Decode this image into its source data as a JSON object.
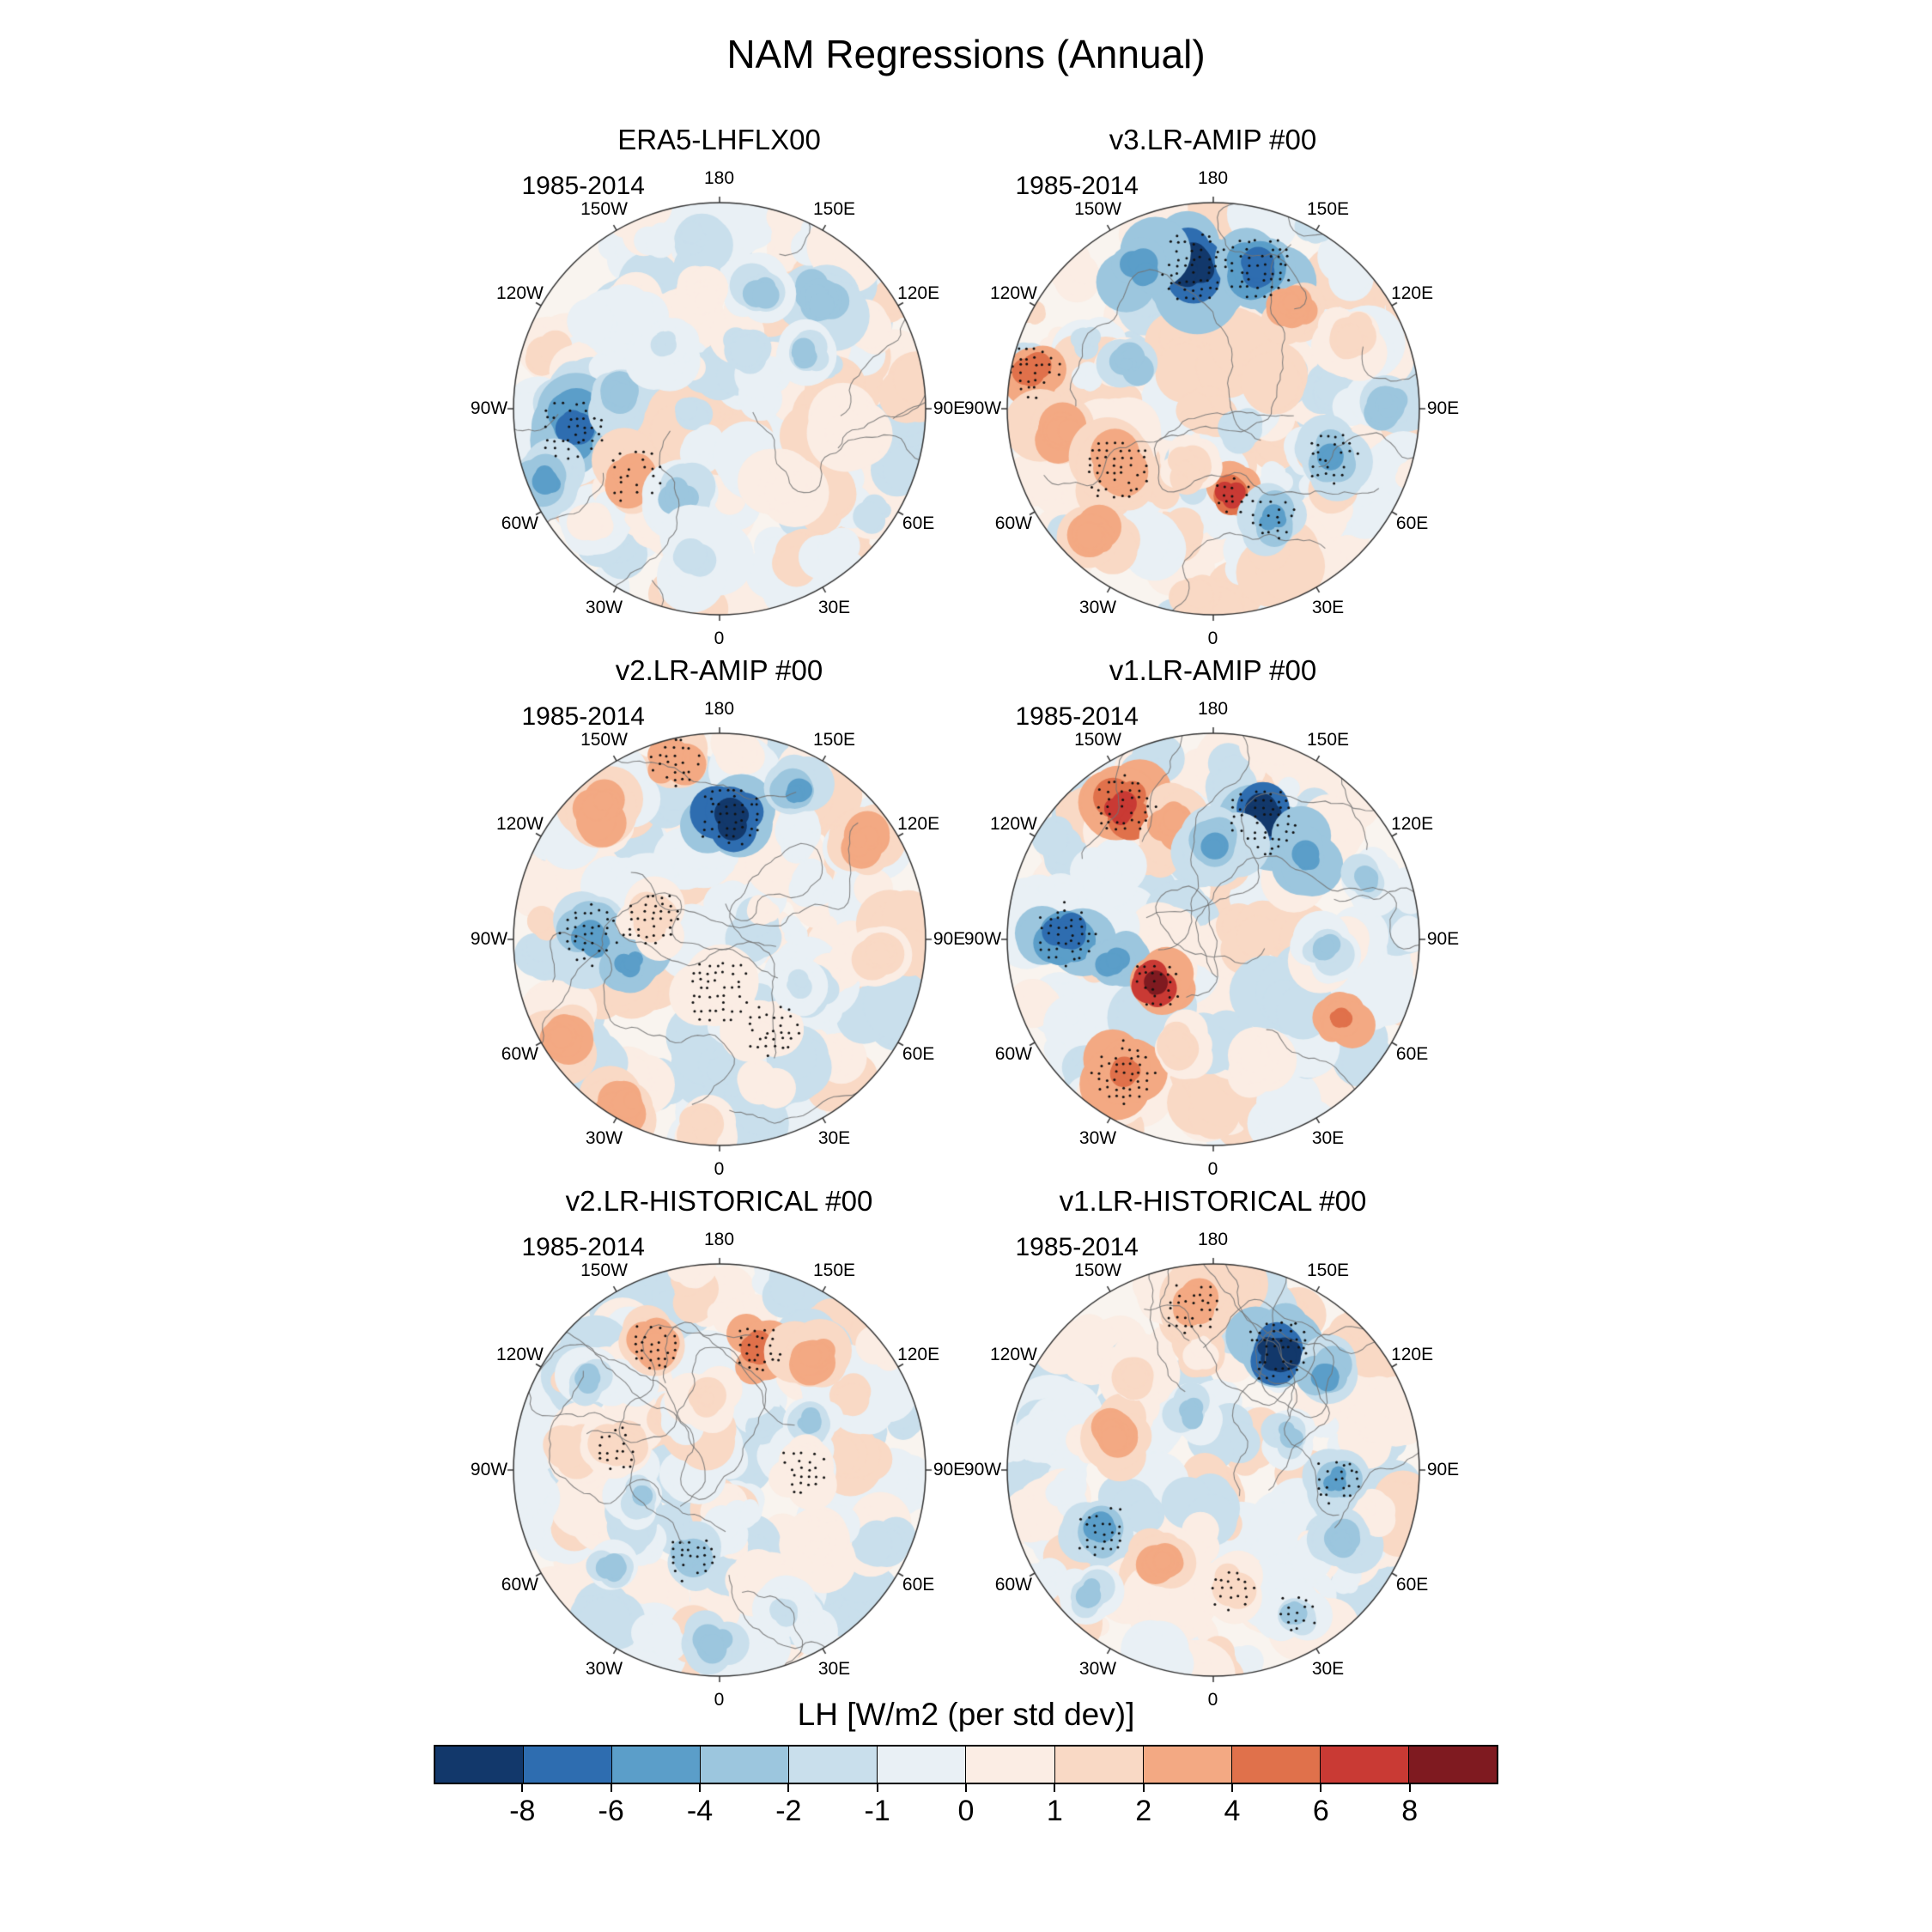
{
  "figure": {
    "title": "NAM Regressions (Annual)"
  },
  "colorbar": {
    "label": "LH [W/m2 (per std dev)]",
    "ticks": [
      "-8",
      "-6",
      "-4",
      "-2",
      "-1",
      "0",
      "1",
      "2",
      "4",
      "6",
      "8"
    ],
    "levels": [
      -8,
      -6,
      -4,
      -2,
      -1,
      0,
      1,
      2,
      4,
      6,
      8
    ],
    "colors": [
      "#12386b",
      "#2e6db0",
      "#5b9ec9",
      "#9cc6de",
      "#c9dfec",
      "#e9f0f5",
      "#fbede4",
      "#f9d9c5",
      "#f3a983",
      "#e0714b",
      "#c93a34",
      "#7f1a20"
    ]
  },
  "map_ring": {
    "labels": [
      {
        "text": "180",
        "angle": 0
      },
      {
        "text": "150E",
        "angle": 30
      },
      {
        "text": "120E",
        "angle": 60
      },
      {
        "text": "90E",
        "angle": 90
      },
      {
        "text": "60E",
        "angle": 120
      },
      {
        "text": "30E",
        "angle": 150
      },
      {
        "text": "0",
        "angle": 180
      },
      {
        "text": "30W",
        "angle": 210
      },
      {
        "text": "60W",
        "angle": 240
      },
      {
        "text": "90W",
        "angle": 270
      },
      {
        "text": "120W",
        "angle": 300
      },
      {
        "text": "150W",
        "angle": 330
      }
    ]
  },
  "chart_data": {
    "type": "heatmap",
    "projection": "north-polar-stereographic",
    "title": "NAM Regressions (Annual)",
    "variable": "LH [W/m2 (per std dev)]",
    "period": "1985-2014",
    "levels": [
      -8,
      -6,
      -4,
      -2,
      -1,
      0,
      1,
      2,
      4,
      6,
      8
    ],
    "palette": [
      "#12386b",
      "#2e6db0",
      "#5b9ec9",
      "#9cc6de",
      "#c9dfec",
      "#e9f0f5",
      "#fbede4",
      "#f9d9c5",
      "#f3a983",
      "#e0714b",
      "#c93a34",
      "#7f1a20"
    ],
    "features_schema": "a = azimuth degrees clockwise from the 180-longitude top of the disc, r = fractional radius from pole, v = approximate anomaly value in W/m2 per std dev, s = blob size px, st = 1 where black significance stippling is visible",
    "panels": [
      {
        "title": "ERA5-LHFLX00",
        "period": "1985-2014",
        "features": [
          {
            "a": 262,
            "r": 0.72,
            "v": -6,
            "s": 55,
            "st": 1
          },
          {
            "a": 247,
            "r": 0.92,
            "v": -4,
            "s": 45
          },
          {
            "a": 278,
            "r": 0.5,
            "v": -3,
            "s": 40
          },
          {
            "a": 232,
            "r": 0.52,
            "v": 4,
            "s": 48,
            "st": 1
          },
          {
            "a": 205,
            "r": 0.45,
            "v": -2,
            "s": 50
          },
          {
            "a": 190,
            "r": 0.75,
            "v": -1,
            "s": 55
          },
          {
            "a": 42,
            "r": 0.72,
            "v": -3,
            "s": 50
          },
          {
            "a": 58,
            "r": 0.5,
            "v": -2,
            "s": 42
          },
          {
            "a": 20,
            "r": 0.6,
            "v": -2,
            "s": 45
          },
          {
            "a": 352,
            "r": 0.55,
            "v": 1,
            "s": 45
          },
          {
            "a": 100,
            "r": 0.65,
            "v": 1,
            "s": 55
          },
          {
            "a": 140,
            "r": 0.5,
            "v": 1,
            "s": 50
          },
          {
            "a": 320,
            "r": 0.4,
            "v": -1,
            "s": 45
          }
        ]
      },
      {
        "title": "v3.LR-AMIP #00",
        "period": "1985-2014",
        "features": [
          {
            "a": 352,
            "r": 0.7,
            "v": -8.5,
            "s": 62,
            "st": 1
          },
          {
            "a": 18,
            "r": 0.72,
            "v": -7,
            "s": 55,
            "st": 1
          },
          {
            "a": 333,
            "r": 0.78,
            "v": -5,
            "s": 50
          },
          {
            "a": 38,
            "r": 0.62,
            "v": 4,
            "s": 40
          },
          {
            "a": 62,
            "r": 0.75,
            "v": 2,
            "s": 45
          },
          {
            "a": 282,
            "r": 0.9,
            "v": 5,
            "s": 45,
            "st": 1
          },
          {
            "a": 262,
            "r": 0.75,
            "v": 4,
            "s": 50
          },
          {
            "a": 238,
            "r": 0.55,
            "v": 4,
            "s": 55,
            "st": 1
          },
          {
            "a": 222,
            "r": 0.85,
            "v": 3,
            "s": 45
          },
          {
            "a": 168,
            "r": 0.42,
            "v": 7,
            "s": 35,
            "st": 1
          },
          {
            "a": 152,
            "r": 0.6,
            "v": -4,
            "s": 40,
            "st": 1
          },
          {
            "a": 112,
            "r": 0.62,
            "v": -4,
            "s": 45,
            "st": 1
          },
          {
            "a": 88,
            "r": 0.85,
            "v": -3,
            "s": 40
          },
          {
            "a": 300,
            "r": 0.45,
            "v": -3,
            "s": 35
          },
          {
            "a": 200,
            "r": 0.3,
            "v": 2,
            "s": 40
          }
        ]
      },
      {
        "title": "v2.LR-AMIP #00",
        "period": "1985-2014",
        "features": [
          {
            "a": 5,
            "r": 0.6,
            "v": -8.5,
            "s": 55,
            "st": 1
          },
          {
            "a": 28,
            "r": 0.82,
            "v": -4,
            "s": 40
          },
          {
            "a": 345,
            "r": 0.9,
            "v": 4,
            "s": 45,
            "st": 1
          },
          {
            "a": 318,
            "r": 0.85,
            "v": 3,
            "s": 50
          },
          {
            "a": 55,
            "r": 0.85,
            "v": 3,
            "s": 45
          },
          {
            "a": 95,
            "r": 0.8,
            "v": 2,
            "s": 45
          },
          {
            "a": 210,
            "r": 0.92,
            "v": 4,
            "s": 50
          },
          {
            "a": 238,
            "r": 0.9,
            "v": 3,
            "s": 50
          },
          {
            "a": 185,
            "r": 0.9,
            "v": 2,
            "s": 45
          },
          {
            "a": 272,
            "r": 0.62,
            "v": -4,
            "s": 50,
            "st": 1
          },
          {
            "a": 255,
            "r": 0.45,
            "v": -5,
            "s": 40
          },
          {
            "a": 288,
            "r": 0.35,
            "v": 2,
            "s": 45,
            "st": 1
          },
          {
            "a": 180,
            "r": 0.25,
            "v": 1,
            "s": 55,
            "st": 1
          },
          {
            "a": 150,
            "r": 0.5,
            "v": 1,
            "s": 45,
            "st": 1
          },
          {
            "a": 120,
            "r": 0.45,
            "v": -1,
            "s": 40
          }
        ]
      },
      {
        "title": "v1.LR-AMIP #00",
        "period": "1985-2014",
        "features": [
          {
            "a": 326,
            "r": 0.78,
            "v": 7,
            "s": 50,
            "st": 1
          },
          {
            "a": 342,
            "r": 0.6,
            "v": 3,
            "s": 40
          },
          {
            "a": 22,
            "r": 0.62,
            "v": -8.5,
            "s": 58,
            "st": 1
          },
          {
            "a": 48,
            "r": 0.6,
            "v": -5,
            "s": 45
          },
          {
            "a": 2,
            "r": 0.45,
            "v": -4,
            "s": 45
          },
          {
            "a": 272,
            "r": 0.72,
            "v": -6,
            "s": 50,
            "st": 1
          },
          {
            "a": 258,
            "r": 0.5,
            "v": -5,
            "s": 40
          },
          {
            "a": 232,
            "r": 0.35,
            "v": 8.5,
            "s": 42,
            "st": 1
          },
          {
            "a": 214,
            "r": 0.78,
            "v": 5,
            "s": 50,
            "st": 1
          },
          {
            "a": 198,
            "r": 0.55,
            "v": 2,
            "s": 40
          },
          {
            "a": 122,
            "r": 0.72,
            "v": 5,
            "s": 32
          },
          {
            "a": 95,
            "r": 0.55,
            "v": -2,
            "s": 40
          },
          {
            "a": 68,
            "r": 0.8,
            "v": -2,
            "s": 40
          },
          {
            "a": 160,
            "r": 0.6,
            "v": 1,
            "s": 45
          }
        ]
      },
      {
        "title": "v2.LR-HISTORICAL #00",
        "period": "1985-2014",
        "features": [
          {
            "a": 18,
            "r": 0.62,
            "v": 5,
            "s": 42,
            "st": 1
          },
          {
            "a": 40,
            "r": 0.72,
            "v": 3,
            "s": 45
          },
          {
            "a": 332,
            "r": 0.68,
            "v": 3,
            "s": 42,
            "st": 1
          },
          {
            "a": 305,
            "r": 0.78,
            "v": -2,
            "s": 40
          },
          {
            "a": 62,
            "r": 0.5,
            "v": -2,
            "s": 38
          },
          {
            "a": 198,
            "r": 0.45,
            "v": -3,
            "s": 40,
            "st": 1
          },
          {
            "a": 182,
            "r": 0.85,
            "v": -3,
            "s": 35
          },
          {
            "a": 252,
            "r": 0.4,
            "v": -2,
            "s": 35
          },
          {
            "a": 283,
            "r": 0.5,
            "v": 2,
            "s": 42,
            "st": 1
          },
          {
            "a": 228,
            "r": 0.7,
            "v": -2,
            "s": 38
          },
          {
            "a": 125,
            "r": 0.6,
            "v": 1,
            "s": 45
          },
          {
            "a": 90,
            "r": 0.4,
            "v": 1,
            "s": 40,
            "st": 1
          },
          {
            "a": 155,
            "r": 0.75,
            "v": -1,
            "s": 40
          },
          {
            "a": 350,
            "r": 0.35,
            "v": 2,
            "s": 38
          }
        ]
      },
      {
        "title": "v1.LR-HISTORICAL #00",
        "period": "1985-2014",
        "features": [
          {
            "a": 352,
            "r": 0.8,
            "v": 4,
            "s": 45,
            "st": 1
          },
          {
            "a": 28,
            "r": 0.66,
            "v": -8.5,
            "s": 55,
            "st": 1
          },
          {
            "a": 50,
            "r": 0.72,
            "v": -4,
            "s": 42
          },
          {
            "a": 95,
            "r": 0.6,
            "v": -4,
            "s": 40,
            "st": 1
          },
          {
            "a": 120,
            "r": 0.72,
            "v": -3,
            "s": 38
          },
          {
            "a": 290,
            "r": 0.5,
            "v": 3,
            "s": 45
          },
          {
            "a": 320,
            "r": 0.6,
            "v": 2,
            "s": 42
          },
          {
            "a": 242,
            "r": 0.62,
            "v": -4,
            "s": 45,
            "st": 1
          },
          {
            "a": 225,
            "r": 0.85,
            "v": -2,
            "s": 38
          },
          {
            "a": 208,
            "r": 0.5,
            "v": 3,
            "s": 40
          },
          {
            "a": 172,
            "r": 0.58,
            "v": 2,
            "s": 38,
            "st": 1
          },
          {
            "a": 338,
            "r": 0.3,
            "v": -2,
            "s": 38
          },
          {
            "a": 150,
            "r": 0.8,
            "v": -2,
            "s": 35,
            "st": 1
          },
          {
            "a": 65,
            "r": 0.4,
            "v": -2,
            "s": 36
          }
        ]
      }
    ]
  }
}
